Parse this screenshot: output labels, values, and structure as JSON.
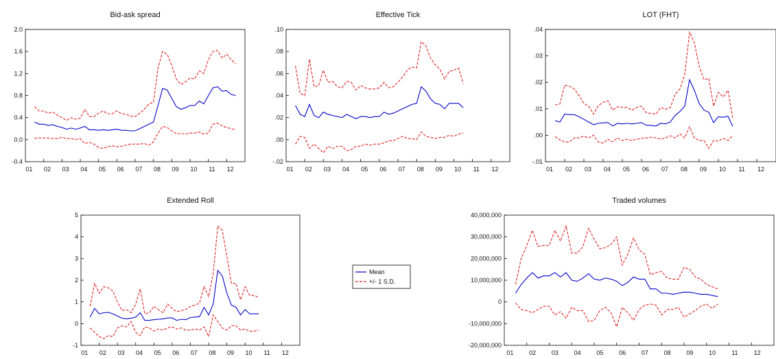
{
  "colors": {
    "mean": "#0000cc",
    "band": "#e02020",
    "axis": "#000000"
  },
  "legend": {
    "mean_label": "Mean",
    "band_label": "+/- 1 S.D."
  },
  "chart_data": [
    {
      "type": "line",
      "title": "Bid-ask spread",
      "x_ticks": [
        "01",
        "02",
        "03",
        "04",
        "05",
        "06",
        "07",
        "08",
        "09",
        "10",
        "11",
        "12"
      ],
      "y_ticks": [
        "-0.4",
        "0.0",
        "0.4",
        "0.8",
        "1.2",
        "1.6",
        "2.0"
      ],
      "ylim": [
        -0.4,
        2.0
      ],
      "x_range": [
        2001.0,
        2013.0
      ],
      "x": [
        2001.5,
        2001.75,
        2002.0,
        2002.25,
        2002.5,
        2002.75,
        2003.0,
        2003.25,
        2003.5,
        2003.75,
        2004.0,
        2004.25,
        2004.5,
        2004.75,
        2005.0,
        2005.25,
        2005.5,
        2005.75,
        2006.0,
        2006.25,
        2006.5,
        2006.75,
        2007.0,
        2007.25,
        2007.5,
        2007.75,
        2008.0,
        2008.25,
        2008.5,
        2008.75,
        2009.0,
        2009.25,
        2009.5,
        2009.75,
        2010.0,
        2010.25,
        2010.5,
        2010.75,
        2011.0,
        2011.25,
        2011.5,
        2011.75,
        2012.0,
        2012.25,
        2012.5
      ],
      "series": [
        {
          "name": "Mean",
          "role": "mean",
          "values": [
            0.32,
            0.28,
            0.28,
            0.26,
            0.27,
            0.24,
            0.22,
            0.19,
            0.21,
            0.19,
            0.21,
            0.24,
            0.18,
            0.18,
            0.17,
            0.18,
            0.17,
            0.18,
            0.19,
            0.17,
            0.17,
            0.16,
            0.16,
            0.2,
            0.24,
            0.28,
            0.32,
            0.62,
            0.93,
            0.9,
            0.75,
            0.6,
            0.55,
            0.58,
            0.62,
            0.62,
            0.7,
            0.65,
            0.8,
            0.94,
            0.96,
            0.88,
            0.89,
            0.82,
            0.8
          ]
        },
        {
          "name": "+/- 1 S.D.",
          "role": "upper",
          "values": [
            0.6,
            0.52,
            0.52,
            0.48,
            0.5,
            0.44,
            0.4,
            0.35,
            0.4,
            0.37,
            0.39,
            0.55,
            0.42,
            0.42,
            0.48,
            0.52,
            0.47,
            0.47,
            0.52,
            0.47,
            0.46,
            0.43,
            0.42,
            0.48,
            0.55,
            0.65,
            0.68,
            1.3,
            1.6,
            1.55,
            1.35,
            1.1,
            1.0,
            1.05,
            1.12,
            1.1,
            1.25,
            1.2,
            1.45,
            1.6,
            1.62,
            1.48,
            1.55,
            1.45,
            1.38
          ]
        },
        {
          "name": "",
          "role": "lower",
          "values": [
            0.02,
            0.03,
            0.03,
            0.03,
            0.02,
            0.02,
            0.04,
            0.02,
            0.02,
            0.0,
            0.02,
            -0.07,
            -0.05,
            -0.08,
            -0.14,
            -0.16,
            -0.13,
            -0.11,
            -0.13,
            -0.12,
            -0.1,
            -0.08,
            -0.08,
            -0.08,
            -0.07,
            -0.1,
            -0.04,
            0.12,
            0.24,
            0.22,
            0.16,
            0.11,
            0.11,
            0.1,
            0.12,
            0.12,
            0.14,
            0.1,
            0.12,
            0.28,
            0.3,
            0.25,
            0.22,
            0.2,
            0.18
          ]
        }
      ]
    },
    {
      "type": "line",
      "title": "Effective Tick",
      "x_ticks": [
        "01",
        "02",
        "03",
        "04",
        "05",
        "06",
        "07",
        "08",
        "09",
        "10",
        "11",
        "12"
      ],
      "y_ticks": [
        "-.02",
        ".00",
        ".02",
        ".04",
        ".06",
        ".08",
        ".10"
      ],
      "ylim": [
        -0.02,
        0.1
      ],
      "x_range": [
        2001.0,
        2013.0
      ],
      "x": [
        2001.5,
        2001.75,
        2002.0,
        2002.25,
        2002.5,
        2002.75,
        2003.0,
        2003.25,
        2003.5,
        2003.75,
        2004.0,
        2004.25,
        2004.5,
        2004.75,
        2005.0,
        2005.25,
        2005.5,
        2005.75,
        2006.0,
        2006.25,
        2006.5,
        2006.75,
        2007.0,
        2007.25,
        2007.5,
        2007.75,
        2008.0,
        2008.25,
        2008.5,
        2008.75,
        2009.0,
        2009.25,
        2009.5,
        2009.75,
        2010.0,
        2010.25,
        2010.5
      ],
      "series": [
        {
          "name": "Mean",
          "role": "mean",
          "values": [
            0.031,
            0.023,
            0.021,
            0.032,
            0.022,
            0.02,
            0.025,
            0.023,
            0.022,
            0.021,
            0.02,
            0.023,
            0.021,
            0.019,
            0.021,
            0.021,
            0.02,
            0.021,
            0.021,
            0.025,
            0.023,
            0.024,
            0.026,
            0.028,
            0.03,
            0.032,
            0.033,
            0.048,
            0.044,
            0.037,
            0.033,
            0.032,
            0.028,
            0.033,
            0.033,
            0.033,
            0.029
          ]
        },
        {
          "name": "+/- 1 S.D.",
          "role": "upper",
          "values": [
            0.067,
            0.042,
            0.04,
            0.073,
            0.048,
            0.049,
            0.063,
            0.052,
            0.053,
            0.048,
            0.047,
            0.053,
            0.052,
            0.045,
            0.049,
            0.047,
            0.046,
            0.046,
            0.047,
            0.052,
            0.047,
            0.048,
            0.052,
            0.057,
            0.063,
            0.066,
            0.065,
            0.089,
            0.085,
            0.074,
            0.068,
            0.064,
            0.055,
            0.062,
            0.063,
            0.065,
            0.051
          ]
        },
        {
          "name": "",
          "role": "lower",
          "values": [
            -0.004,
            0.003,
            0.002,
            -0.008,
            -0.004,
            -0.008,
            -0.012,
            -0.006,
            -0.008,
            -0.006,
            -0.006,
            -0.01,
            -0.009,
            -0.006,
            -0.006,
            -0.004,
            -0.005,
            -0.004,
            -0.004,
            -0.003,
            -0.001,
            -0.001,
            0.001,
            0.003,
            0.001,
            0.001,
            0.0,
            0.007,
            0.003,
            0.002,
            0.001,
            0.002,
            0.002,
            0.004,
            0.003,
            0.005,
            0.006
          ]
        }
      ]
    },
    {
      "type": "line",
      "title": "LOT (FHT)",
      "x_ticks": [
        "01",
        "02",
        "03",
        "04",
        "05",
        "06",
        "07",
        "08",
        "09",
        "10",
        "11",
        "12"
      ],
      "y_ticks": [
        "-.01",
        ".00",
        ".01",
        ".02",
        ".03",
        ".04"
      ],
      "ylim": [
        -0.01,
        0.04
      ],
      "x_range": [
        2001.0,
        2013.0
      ],
      "x": [
        2001.5,
        2001.75,
        2002.0,
        2002.25,
        2002.5,
        2002.75,
        2003.0,
        2003.25,
        2003.5,
        2003.75,
        2004.0,
        2004.25,
        2004.5,
        2004.75,
        2005.0,
        2005.25,
        2005.5,
        2005.75,
        2006.0,
        2006.25,
        2006.5,
        2006.75,
        2007.0,
        2007.25,
        2007.5,
        2007.75,
        2008.0,
        2008.25,
        2008.5,
        2008.75,
        2009.0,
        2009.25,
        2009.5,
        2009.75,
        2010.0,
        2010.25,
        2010.5,
        2010.75
      ],
      "series": [
        {
          "name": "Mean",
          "role": "mean",
          "values": [
            0.0055,
            0.005,
            0.008,
            0.0078,
            0.0078,
            0.007,
            0.006,
            0.005,
            0.004,
            0.0045,
            0.0047,
            0.0048,
            0.0035,
            0.0045,
            0.0043,
            0.0045,
            0.0043,
            0.0045,
            0.0048,
            0.0038,
            0.0037,
            0.0035,
            0.0045,
            0.0043,
            0.005,
            0.0075,
            0.009,
            0.011,
            0.021,
            0.017,
            0.012,
            0.0095,
            0.0087,
            0.0048,
            0.007,
            0.0068,
            0.0072,
            0.0033
          ]
        },
        {
          "name": "+/- 1 S.D.",
          "role": "upper",
          "values": [
            0.0115,
            0.0118,
            0.019,
            0.0185,
            0.0175,
            0.015,
            0.012,
            0.011,
            0.008,
            0.0112,
            0.0125,
            0.013,
            0.0095,
            0.0108,
            0.0105,
            0.0105,
            0.0095,
            0.0105,
            0.011,
            0.0085,
            0.0082,
            0.008,
            0.0105,
            0.0098,
            0.0105,
            0.0155,
            0.0175,
            0.023,
            0.039,
            0.035,
            0.026,
            0.021,
            0.0215,
            0.011,
            0.0162,
            0.0145,
            0.017,
            0.0065
          ]
        },
        {
          "name": "",
          "role": "lower",
          "values": [
            -0.0005,
            -0.0018,
            -0.0025,
            -0.0025,
            -0.001,
            -0.001,
            -0.0003,
            -0.001,
            0.0,
            -0.0025,
            -0.003,
            -0.0015,
            -0.0025,
            -0.001,
            -0.002,
            -0.0015,
            -0.002,
            -0.0015,
            -0.0012,
            -0.001,
            -0.0008,
            -0.001,
            -0.0015,
            -0.001,
            -0.0002,
            -0.001,
            0.0005,
            -0.001,
            0.0032,
            -0.001,
            -0.002,
            -0.002,
            -0.005,
            -0.002,
            -0.0022,
            -0.0012,
            -0.002,
            0.0
          ]
        }
      ]
    },
    {
      "type": "line",
      "title": "Extended Roll",
      "x_ticks": [
        "01",
        "02",
        "03",
        "04",
        "05",
        "06",
        "07",
        "08",
        "09",
        "10",
        "11",
        "12"
      ],
      "y_ticks": [
        "-1",
        "0",
        "1",
        "2",
        "3",
        "4",
        "5"
      ],
      "ylim": [
        -1,
        5
      ],
      "x_range": [
        2001.0,
        2013.0
      ],
      "x": [
        2001.5,
        2001.75,
        2002.0,
        2002.25,
        2002.5,
        2002.75,
        2003.0,
        2003.25,
        2003.5,
        2003.75,
        2004.0,
        2004.25,
        2004.5,
        2004.75,
        2005.0,
        2005.25,
        2005.5,
        2005.75,
        2006.0,
        2006.25,
        2006.5,
        2006.75,
        2007.0,
        2007.25,
        2007.5,
        2007.75,
        2008.0,
        2008.25,
        2008.5,
        2008.75,
        2009.0,
        2009.25,
        2009.5,
        2009.75,
        2010.0,
        2010.25,
        2010.5,
        2010.75
      ],
      "series": [
        {
          "name": "Mean",
          "role": "mean",
          "values": [
            0.3,
            0.7,
            0.45,
            0.5,
            0.52,
            0.45,
            0.35,
            0.25,
            0.22,
            0.25,
            0.3,
            0.5,
            0.15,
            0.15,
            0.18,
            0.2,
            0.22,
            0.26,
            0.26,
            0.15,
            0.2,
            0.18,
            0.28,
            0.3,
            0.32,
            0.75,
            0.4,
            0.9,
            2.45,
            2.2,
            1.4,
            0.85,
            0.75,
            0.4,
            0.65,
            0.45,
            0.45,
            0.45
          ]
        },
        {
          "name": "+/- 1 S.D.",
          "role": "upper",
          "values": [
            0.8,
            1.85,
            1.4,
            1.7,
            1.65,
            1.5,
            1.0,
            0.6,
            0.65,
            0.5,
            0.9,
            1.6,
            0.45,
            0.5,
            0.8,
            0.65,
            0.5,
            0.9,
            0.7,
            0.55,
            0.6,
            0.65,
            0.8,
            0.85,
            0.95,
            1.7,
            1.25,
            2.3,
            4.5,
            4.3,
            3.1,
            1.85,
            1.85,
            1.1,
            1.7,
            1.3,
            1.3,
            1.2
          ]
        },
        {
          "name": "",
          "role": "lower",
          "values": [
            -0.2,
            -0.4,
            -0.6,
            -0.7,
            -0.55,
            -0.6,
            -0.2,
            -0.1,
            -0.15,
            0.1,
            -0.4,
            -0.55,
            -0.15,
            -0.2,
            -0.35,
            -0.25,
            -0.3,
            -0.2,
            -0.15,
            -0.25,
            -0.2,
            -0.3,
            -0.3,
            -0.25,
            -0.3,
            -0.15,
            -0.6,
            0.4,
            0.1,
            -0.2,
            -0.3,
            -0.1,
            -0.1,
            -0.3,
            -0.25,
            -0.35,
            -0.35,
            -0.3
          ]
        }
      ]
    },
    {
      "type": "line",
      "title": "Traded volumes",
      "x_ticks": [
        "01",
        "02",
        "03",
        "04",
        "05",
        "06",
        "07",
        "08",
        "09",
        "10",
        "11",
        "12"
      ],
      "y_ticks": [
        "-20,000,000",
        "-10,000,000",
        "0",
        "10,000,000",
        "20,000,000",
        "30,000,000",
        "40,000,000"
      ],
      "ylim": [
        -20000000,
        40000000
      ],
      "x_range": [
        2001.0,
        2013.0
      ],
      "x": [
        2001.5,
        2001.75,
        2002.0,
        2002.25,
        2002.5,
        2002.75,
        2003.0,
        2003.25,
        2003.5,
        2003.75,
        2004.0,
        2004.25,
        2004.5,
        2004.75,
        2005.0,
        2005.25,
        2005.5,
        2005.75,
        2006.0,
        2006.25,
        2006.5,
        2006.75,
        2007.0,
        2007.25,
        2007.5,
        2007.75,
        2008.0,
        2008.25,
        2008.5,
        2008.75,
        2009.0,
        2009.25,
        2009.5,
        2009.75,
        2010.0,
        2010.25,
        2010.5
      ],
      "series": [
        {
          "name": "Mean",
          "role": "mean",
          "values": [
            4000000,
            8000000,
            11000000,
            13500000,
            11000000,
            12000000,
            12000000,
            13500000,
            11500000,
            13500000,
            10000000,
            9500000,
            11000000,
            13000000,
            10500000,
            10000000,
            11000000,
            10500000,
            9500000,
            7500000,
            9000000,
            11500000,
            10500000,
            10500000,
            6000000,
            6000000,
            4000000,
            4000000,
            3500000,
            4000000,
            4500000,
            4500000,
            4000000,
            3500000,
            3500000,
            3000000,
            2500000
          ]
        },
        {
          "name": "+/- 1 S.D.",
          "role": "upper",
          "values": [
            8000000,
            20000000,
            26000000,
            33000000,
            25500000,
            26000000,
            26000000,
            33000000,
            28000000,
            35000000,
            22500000,
            22500000,
            25500000,
            34000000,
            29000000,
            24500000,
            25000000,
            26500000,
            30000000,
            17000000,
            22000000,
            29500000,
            24000000,
            22000000,
            12500000,
            13500000,
            14000000,
            11000000,
            10500000,
            10500000,
            16000000,
            15000000,
            11500000,
            10500000,
            8000000,
            7000000,
            6000000
          ]
        },
        {
          "name": "",
          "role": "lower",
          "values": [
            -500000,
            -3500000,
            -4000000,
            -5000000,
            -3500000,
            -2000000,
            -2000000,
            -6000000,
            -4500000,
            -7500000,
            -2500000,
            -4000000,
            -4000000,
            -9000000,
            -8500000,
            -4000000,
            -2500000,
            -5000000,
            -11500000,
            -2500000,
            -5000000,
            -8500000,
            -3500000,
            -1500000,
            -1000000,
            -1500000,
            -6000000,
            -3500000,
            -3500000,
            -2500000,
            -7000000,
            -5500000,
            -4000000,
            -2000000,
            -1000000,
            -3000000,
            -1000000
          ]
        }
      ]
    }
  ]
}
